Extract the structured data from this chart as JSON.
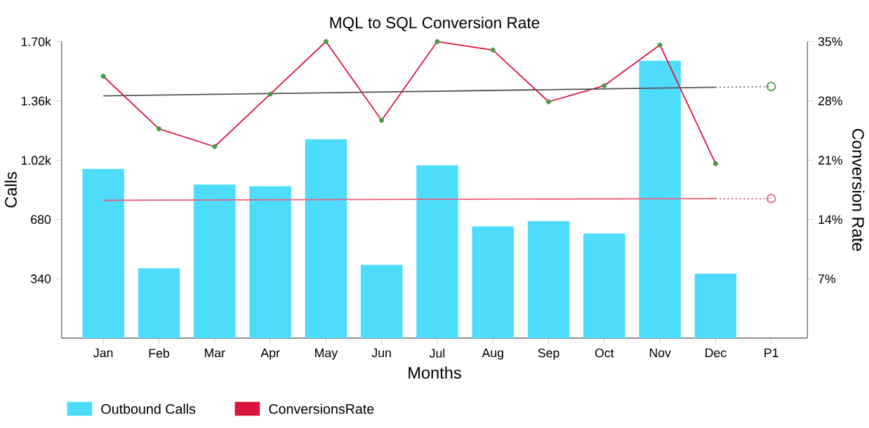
{
  "chart_data": {
    "type": "bar",
    "title": "MQL to SQL Conversion Rate",
    "xlabel": "Months",
    "ylabel": "Calls",
    "y2label": "Conversion Rate",
    "categories": [
      "Jan",
      "Feb",
      "Mar",
      "Apr",
      "May",
      "Jun",
      "Jul",
      "Aug",
      "Sep",
      "Oct",
      "Nov",
      "Dec",
      "P1"
    ],
    "ylim": [
      0,
      1700
    ],
    "yticks": [
      340,
      680,
      {
        "value": 1020,
        "label": "1.02k"
      },
      {
        "value": 1360,
        "label": "1.36k"
      },
      {
        "value": 1700,
        "label": "1.70k"
      }
    ],
    "y2lim": [
      0,
      35
    ],
    "y2ticks": [
      {
        "value": 7,
        "label": "7%"
      },
      {
        "value": 14,
        "label": "14%"
      },
      {
        "value": 21,
        "label": "21%"
      },
      {
        "value": 28,
        "label": "28%"
      },
      {
        "value": 35,
        "label": "35%"
      }
    ],
    "legend": "bottom left",
    "marker": "circle",
    "series": [
      {
        "name": "Outbound Calls",
        "color": "#4ddcfc",
        "values": [
          970,
          400,
          880,
          870,
          1140,
          420,
          990,
          640,
          670,
          600,
          1590,
          370,
          null
        ]
      },
      {
        "name": "ConversionsRate",
        "type": "line",
        "axis": "y2",
        "color": "#dc143c",
        "colors": [
          "#4a9a4a",
          "#4a9a4a",
          "#4a9a4a",
          "#4a9a4a",
          "#4a9a4a",
          "#4a9a4a",
          "#4a9a4a",
          "#4a9a4a",
          "#4a9a4a",
          "#4a9a4a",
          "#4a9a4a",
          "#4a9a4a",
          null
        ],
        "values": [
          30.9,
          24.7,
          22.6,
          28.8,
          35.0,
          25.7,
          35.0,
          34.0,
          27.9,
          29.8,
          34.6,
          20.6,
          null
        ]
      },
      {
        "type": "line",
        "marker": "none",
        "color": "#e8607a",
        "values": [
          790,
          null,
          null,
          null,
          null,
          null,
          null,
          null,
          null,
          null,
          null,
          800,
          null
        ]
      },
      {
        "type": "line",
        "marker": "none",
        "line_style": "dotted",
        "color": "#e8607a",
        "values": [
          null,
          null,
          null,
          null,
          null,
          null,
          null,
          null,
          null,
          null,
          null,
          800,
          800
        ]
      },
      {
        "type": "scatter",
        "color": "#e8607a",
        "values": [
          null,
          null,
          null,
          null,
          null,
          null,
          null,
          null,
          null,
          null,
          null,
          null,
          800
        ]
      },
      {
        "type": "line",
        "axis": "y2",
        "marker": "none",
        "color": "#555555",
        "values": [
          28.6,
          null,
          null,
          null,
          null,
          null,
          null,
          null,
          null,
          null,
          null,
          29.6,
          null
        ]
      },
      {
        "type": "line",
        "axis": "y2",
        "marker": "none",
        "line_style": "dotted",
        "color": "#555555",
        "values": [
          null,
          null,
          null,
          null,
          null,
          null,
          null,
          null,
          null,
          null,
          null,
          29.6,
          29.7
        ]
      },
      {
        "type": "scatter",
        "axis": "y2",
        "color": "#4a9a4a",
        "values": [
          null,
          null,
          null,
          null,
          null,
          null,
          null,
          null,
          null,
          null,
          null,
          null,
          29.7
        ]
      }
    ]
  }
}
